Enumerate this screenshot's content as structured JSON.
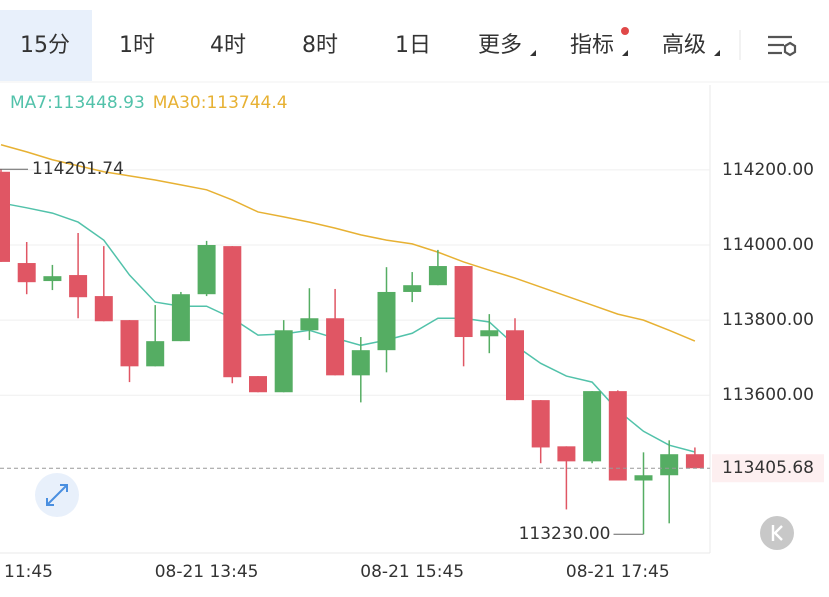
{
  "tabs": [
    "15分",
    "1时",
    "4时",
    "8时",
    "1日",
    "更多",
    "指标",
    "高级"
  ],
  "chart_data": {
    "type": "candlestick",
    "categories": [
      "11:45",
      null,
      null,
      null,
      null,
      null,
      null,
      null,
      "08-21 13:45",
      null,
      null,
      null,
      null,
      null,
      null,
      null,
      "08-21 15:45",
      null,
      null,
      null,
      null,
      null,
      null,
      null,
      "08-21 17:45",
      null,
      null,
      null
    ],
    "open": [
      114195,
      113952,
      113904,
      113920,
      113864,
      113800,
      113677,
      113744,
      113869,
      113997,
      113651,
      113608,
      113773,
      113805,
      113653,
      113720,
      113875,
      113893,
      113944,
      113757,
      113773,
      113587,
      113464,
      113424,
      113611,
      113373,
      113387,
      113443
    ],
    "high": [
      114201.74,
      114008,
      113947,
      114032,
      113997,
      113800,
      113840,
      113875,
      114011,
      113997,
      113651,
      113800,
      113885,
      113883,
      113755,
      113941,
      113928,
      113987,
      113944,
      113816,
      113805,
      113587,
      113464,
      113611,
      113613,
      113448,
      113480,
      113461
    ],
    "low": [
      113955,
      113869,
      113880,
      113805,
      113797,
      113635,
      113677,
      113744,
      113864,
      113632,
      113608,
      113608,
      113747,
      113653,
      113581,
      113661,
      113848,
      113893,
      113677,
      113712,
      113587,
      113419,
      113296,
      113419,
      113373,
      113230,
      113259,
      113405.68
    ],
    "close": [
      113955,
      113901,
      113917,
      113861,
      113797,
      113677,
      113744,
      113869,
      114000,
      113648,
      113608,
      113773,
      113805,
      113653,
      113720,
      113875,
      113893,
      113944,
      113755,
      113773,
      113587,
      113461,
      113424,
      113611,
      113373,
      113387,
      113443,
      113405.68
    ],
    "up_color": "#55ad63",
    "down_color": "#e05664",
    "min_label": "113230.00",
    "series": [
      {
        "name": "MA7:",
        "color": "#52c2aa",
        "values": [
          114112,
          114099,
          114085,
          114061,
          114013,
          113920,
          113848,
          113837,
          113837,
          113805,
          113760,
          113763,
          113773,
          113752,
          113733,
          113747,
          113765,
          113805,
          113805,
          113795,
          113733,
          113685,
          113651,
          113635,
          113560,
          113504,
          113467,
          113448.93
        ]
      },
      {
        "name": "MA30:",
        "color": "#e7b133",
        "values": [
          114267,
          114248,
          114227,
          114211,
          114195,
          114184,
          114173,
          114160,
          114147,
          114120,
          114088,
          114075,
          114061,
          114045,
          114027,
          114013,
          114003,
          113981,
          113955,
          113933,
          113912,
          113888,
          113864,
          113840,
          113816,
          113800,
          113773,
          113744.4
        ]
      }
    ],
    "ylim": [
      113180,
      114426
    ],
    "yticks": [
      {
        "value": 113600,
        "label": "113600.00"
      },
      {
        "value": 113800,
        "label": "113800.00"
      },
      {
        "value": 114000,
        "label": "114000.00"
      },
      {
        "value": 114200,
        "label": "114200.00"
      }
    ],
    "grid": true
  }
}
